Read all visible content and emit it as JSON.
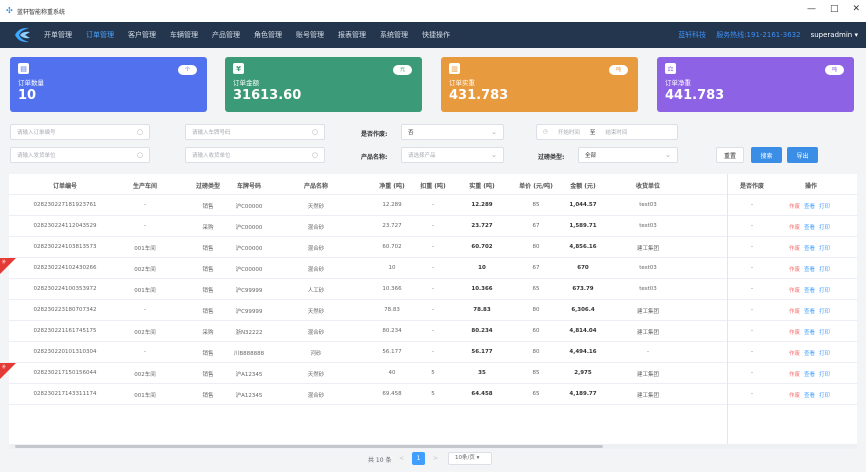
{
  "window": {
    "title": "蓝轩智能称重系统",
    "minimize": "—",
    "maximize": "□",
    "close": "✕"
  },
  "nav": {
    "items": [
      "开单管理",
      "订单管理",
      "客户管理",
      "车辆管理",
      "产品管理",
      "角色管理",
      "账号管理",
      "报表管理",
      "系统管理",
      "快捷操作"
    ],
    "active_index": 1,
    "brand": "蓝轩科技",
    "hotline": "服务热线:191-2161-3632",
    "user": "superadmin",
    "user_caret": "▾"
  },
  "cards": [
    {
      "label": "订单数量",
      "value": "10",
      "pill": "个",
      "icon": "document-icon",
      "color": "#5271ee"
    },
    {
      "label": "订单金额",
      "value": "31613.60",
      "pill": "元",
      "icon": "money-icon",
      "color": "#3b9a78"
    },
    {
      "label": "订单实重",
      "value": "431.783",
      "pill": "吨",
      "icon": "weight-icon",
      "color": "#e89a3e"
    },
    {
      "label": "订单净重",
      "value": "441.783",
      "pill": "吨",
      "icon": "scale-icon",
      "color": "#8d62e4"
    }
  ],
  "filters": {
    "order_no_placeholder": "请输入订单编号",
    "plate_placeholder": "请输入车牌号码",
    "voided_label": "是否作废:",
    "voided_value": "否",
    "date_start_placeholder": "开始时间",
    "date_sep": "至",
    "date_end_placeholder": "结束时间",
    "shipper_placeholder": "请输入发货单位",
    "receiver_placeholder": "请输入收货单位",
    "product_label": "产品名称:",
    "product_placeholder": "请选择产品",
    "weigh_type_label": "过磅类型:",
    "weigh_type_value": "全部",
    "reset_label": "重置",
    "search_label": "搜索",
    "export_label": "导出"
  },
  "table": {
    "headers": [
      "订单编号",
      "生产车间",
      "过磅类型",
      "车牌号码",
      "产品名称",
      "净重 (吨)",
      "扣重 (吨)",
      "实重 (吨)",
      "单价 (元/吨)",
      "金额 (元)",
      "收货单位",
      "是否作废",
      "操作"
    ],
    "ops": {
      "void": "作废",
      "view": "查看",
      "print": "打印"
    },
    "ribbon_text": "补",
    "rows": [
      {
        "no": "0282302271819237​61",
        "ws": "-",
        "type": "销售",
        "plate": "沪C00000",
        "product": "天然砂",
        "net": "12.289",
        "deduct": "-",
        "actual": "12.289",
        "price": "85",
        "amount": "1,044.57",
        "receiver": "test03",
        "void": "-",
        "flag": false
      },
      {
        "no": "028230224112043529",
        "ws": "-",
        "type": "采购",
        "plate": "沪C00000",
        "product": "混合砂",
        "net": "23.727",
        "deduct": "-",
        "actual": "23.727",
        "price": "67",
        "amount": "1,589.71",
        "receiver": "test03",
        "void": "-",
        "flag": false
      },
      {
        "no": "028230224103813573",
        "ws": "001车间",
        "type": "销售",
        "plate": "沪C00000",
        "product": "混合砂",
        "net": "60.702",
        "deduct": "-",
        "actual": "60.702",
        "price": "80",
        "amount": "4,856.16",
        "receiver": "建工集团",
        "void": "-",
        "flag": false
      },
      {
        "no": "028230224102430266",
        "ws": "002车间",
        "type": "销售",
        "plate": "沪C00000",
        "product": "混合砂",
        "net": "10",
        "deduct": "-",
        "actual": "10",
        "price": "67",
        "amount": "670",
        "receiver": "test03",
        "void": "-",
        "flag": true
      },
      {
        "no": "028230224100353972",
        "ws": "001车间",
        "type": "销售",
        "plate": "沪C99999",
        "product": "人工砂",
        "net": "10.366",
        "deduct": "-",
        "actual": "10.366",
        "price": "65",
        "amount": "673.79",
        "receiver": "test03",
        "void": "-",
        "flag": false
      },
      {
        "no": "028230223180707342",
        "ws": "-",
        "type": "销售",
        "plate": "沪C99999",
        "product": "天然砂",
        "net": "78.83",
        "deduct": "-",
        "actual": "78.83",
        "price": "80",
        "amount": "6,306.4",
        "receiver": "建工集团",
        "void": "-",
        "flag": false
      },
      {
        "no": "028230221161745175",
        "ws": "002车间",
        "type": "采购",
        "plate": "浙N32222",
        "product": "混合砂",
        "net": "80.234",
        "deduct": "-",
        "actual": "80.234",
        "price": "60",
        "amount": "4,814.04",
        "receiver": "建工集团",
        "void": "-",
        "flag": false
      },
      {
        "no": "028230220101310304",
        "ws": "-",
        "type": "销售",
        "plate": "川B888888",
        "product": "河砂",
        "net": "56.177",
        "deduct": "-",
        "actual": "56.177",
        "price": "80",
        "amount": "4,494.16",
        "receiver": "-",
        "void": "-",
        "flag": false
      },
      {
        "no": "028230217150156044",
        "ws": "002车间",
        "type": "销售",
        "plate": "沪A12345",
        "product": "天然砂",
        "net": "40",
        "deduct": "5",
        "actual": "35",
        "price": "85",
        "amount": "2,975",
        "receiver": "建工集团",
        "void": "-",
        "flag": true
      },
      {
        "no": "028230217143311174",
        "ws": "001车间",
        "type": "销售",
        "plate": "沪A12345",
        "product": "混合砂",
        "net": "69.458",
        "deduct": "5",
        "actual": "64.458",
        "price": "65",
        "amount": "4,189.77",
        "receiver": "建工集团",
        "void": "-",
        "flag": false
      }
    ]
  },
  "pagination": {
    "total": "共 10 条",
    "prev": "<",
    "current": "1",
    "next": ">",
    "page_size": "10条/页",
    "page_size_caret": "▾"
  }
}
